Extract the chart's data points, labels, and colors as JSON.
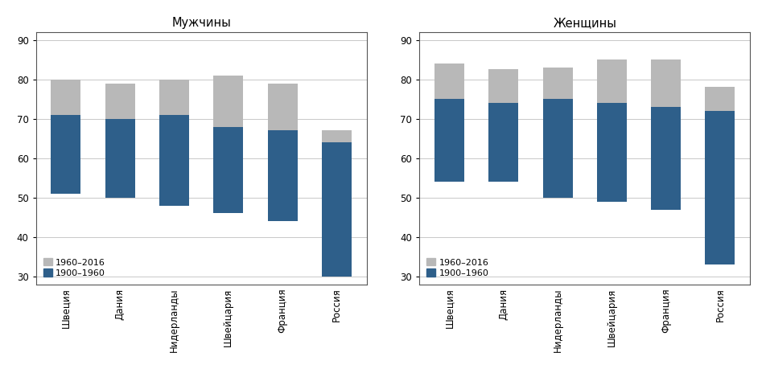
{
  "categories": [
    "Швеция",
    "Дания",
    "Нидерланды",
    "Швейцария",
    "Франция",
    "Россия"
  ],
  "men": {
    "title": "Мужчины",
    "base": [
      51,
      50,
      48,
      46,
      44,
      30
    ],
    "blue_top": [
      71,
      70,
      71,
      68,
      67,
      64
    ],
    "total_top": [
      80,
      79,
      80,
      81,
      79,
      67
    ]
  },
  "women": {
    "title": "Женщины",
    "base": [
      54,
      54,
      50,
      49,
      47,
      33
    ],
    "blue_top": [
      75,
      74,
      75,
      74,
      73,
      72
    ],
    "total_top": [
      84,
      82.5,
      83,
      85,
      85,
      78
    ]
  },
  "blue_color": "#2e5f8a",
  "gray_color": "#b8b8b8",
  "ylim": [
    28,
    92
  ],
  "yticks": [
    30,
    40,
    50,
    60,
    70,
    80,
    90
  ],
  "legend_labels": [
    "1960–2016",
    "1900–1960"
  ],
  "bar_width": 0.55
}
